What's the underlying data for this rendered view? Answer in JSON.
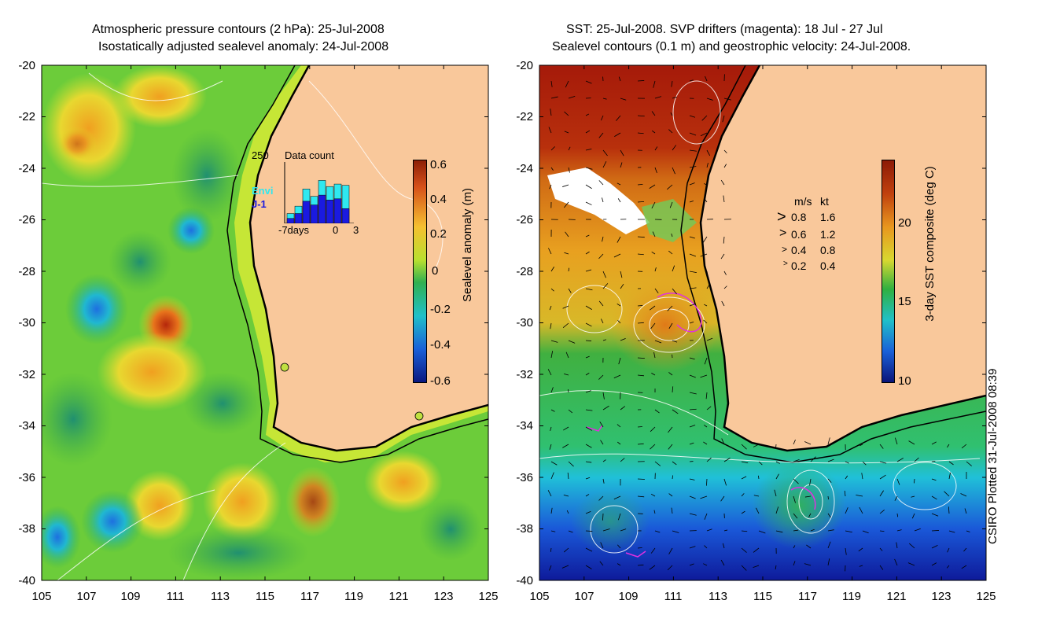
{
  "left_panel": {
    "title_line1": "Atmospheric pressure contours (2 hPa): 25-Jul-2008",
    "title_line2": "Isostatically adjusted sealevel anomaly: 24-Jul-2008",
    "colorbar_label": "Sealevel anomaly (m)",
    "colorbar_ticks": [
      "0.6",
      "0.4",
      "0.2",
      "0",
      "-0.2",
      "-0.4",
      "-0.6"
    ],
    "inset": {
      "ymax_label": "250",
      "title": "Data count",
      "legend_envi": "Envi",
      "legend_j1": "J-1",
      "x_start": "-7days",
      "x_zero": "0",
      "x_end": "3",
      "bars_total": [
        40,
        70,
        140,
        110,
        175,
        150,
        160,
        155
      ],
      "bars_j1": [
        20,
        40,
        90,
        75,
        115,
        95,
        100,
        60
      ],
      "ymax": 250
    }
  },
  "right_panel": {
    "title_line1": "SST: 25-Jul-2008. SVP drifters (magenta): 18 Jul - 27 Jul",
    "title_line2": "Sealevel contours (0.1 m) and geostrophic velocity: 24-Jul-2008.",
    "colorbar_label": "3-day SST composite (deg C)",
    "colorbar_ticks": [
      "20",
      "15",
      "10"
    ],
    "velocity_legend": {
      "header_ms": "m/s",
      "header_kt": "kt",
      "rows": [
        {
          "ms": "0.8",
          "kt": "1.6"
        },
        {
          "ms": "0.6",
          "kt": "1.2"
        },
        {
          "ms": "0.4",
          "kt": "0.8"
        },
        {
          "ms": "0.2",
          "kt": "0.4"
        }
      ]
    }
  },
  "axes": {
    "y_ticks": [
      "-20",
      "-22",
      "-24",
      "-26",
      "-28",
      "-30",
      "-32",
      "-34",
      "-36",
      "-38",
      "-40"
    ],
    "x_ticks": [
      "105",
      "107",
      "109",
      "111",
      "113",
      "115",
      "117",
      "119",
      "121",
      "123",
      "125"
    ]
  },
  "credit": "CSIRO Plotted 31-Jul-2008 08:39",
  "colors": {
    "land": "#f9c89b",
    "sla_mid": "#3fbf3f",
    "warm": "#b5270b",
    "cold": "#0d1f9c",
    "drifter": "#e030e0",
    "inset_envi": "#2fe8f0",
    "inset_j1": "#1a1ae0"
  }
}
